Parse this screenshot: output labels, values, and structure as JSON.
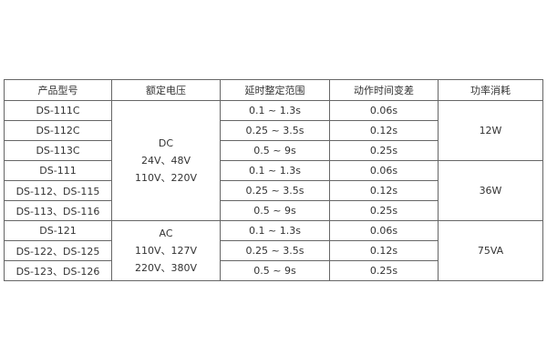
{
  "headers": [
    "产品型号",
    "额定电压",
    "延时整定范围",
    "动作时间变差",
    "功率消耗"
  ],
  "rows": [
    {
      "model": "DS-111C",
      "range": "0.1 ~ 1.3s",
      "variance": "0.06s"
    },
    {
      "model": "DS-112C",
      "range": "0.25 ~ 3.5s",
      "variance": "0.12s"
    },
    {
      "model": "DS-113C",
      "range": "0.5 ~ 9s",
      "variance": "0.25s"
    },
    {
      "model": "DS-111",
      "range": "0.1 ~ 1.3s",
      "variance": "0.06s"
    },
    {
      "model": "DS-112、DS-115",
      "range": "0.25 ~ 3.5s",
      "variance": "0.12s"
    },
    {
      "model": "DS-113、DS-116",
      "range": "0.5 ~ 9s",
      "variance": "0.25s"
    },
    {
      "model": "DS-121",
      "range": "0.1 ~ 1.3s",
      "variance": "0.06s"
    },
    {
      "model": "DS-122、DS-125",
      "range": "0.25 ~ 3.5s",
      "variance": "0.12s"
    },
    {
      "model": "DS-123、DS-126",
      "range": "0.5 ~ 9s",
      "variance": "0.25s"
    }
  ],
  "voltage_groups": [
    {
      "lines": [
        "DC",
        "24V、48V",
        "110V、220V"
      ]
    },
    {
      "lines": [
        "AC",
        "110V、127V",
        "220V、380V"
      ]
    }
  ],
  "power_groups": [
    "12W",
    "36W",
    "75VA"
  ]
}
